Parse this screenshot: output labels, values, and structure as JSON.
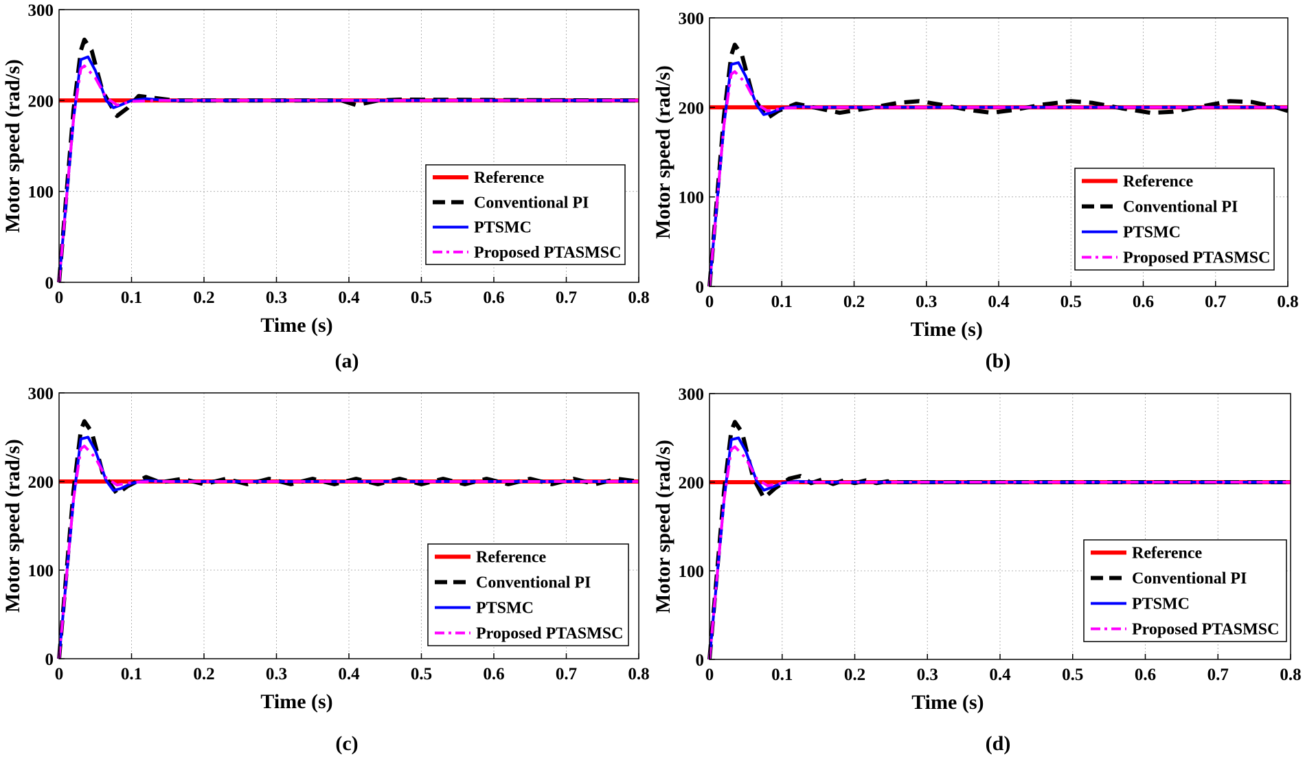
{
  "colors": {
    "reference": "#ff0000",
    "conventional_pi": "#000000",
    "ptsmc": "#0000ff",
    "proposed": "#ff00ff",
    "grid": "#b0b0b0"
  },
  "chart_data": [
    {
      "type": "line",
      "caption": "(a)",
      "xlabel": "Time (s)",
      "ylabel": "Motor speed (rad/s)",
      "xlim": [
        0,
        0.8
      ],
      "ylim": [
        0,
        300
      ],
      "xticks": [
        "0",
        "0.1",
        "0.2",
        "0.3",
        "0.4",
        "0.5",
        "0.6",
        "0.7",
        "0.8"
      ],
      "yticks": [
        "0",
        "100",
        "200",
        "300"
      ],
      "grid": true,
      "legend_position": "bottom-right",
      "series": [
        {
          "name": "Reference",
          "style": "solid",
          "x": [
            0,
            0.8
          ],
          "y": [
            200,
            200
          ]
        },
        {
          "name": "Conventional PI",
          "style": "dashed",
          "x": [
            0,
            0.01,
            0.02,
            0.03,
            0.035,
            0.045,
            0.06,
            0.08,
            0.095,
            0.11,
            0.13,
            0.16,
            0.39,
            0.41,
            0.44,
            0.47,
            0.8
          ],
          "y": [
            0,
            95,
            190,
            255,
            267,
            255,
            210,
            183,
            192,
            205,
            203,
            200,
            200,
            195,
            200,
            201,
            200
          ]
        },
        {
          "name": "PTSMC",
          "style": "solid",
          "x": [
            0,
            0.01,
            0.02,
            0.03,
            0.04,
            0.05,
            0.065,
            0.075,
            0.085,
            0.1,
            0.12,
            0.15,
            0.8
          ],
          "y": [
            0,
            90,
            180,
            245,
            248,
            233,
            200,
            192,
            195,
            200,
            202,
            200,
            200
          ]
        },
        {
          "name": "Proposed PTASMSC",
          "style": "dashdot",
          "x": [
            0,
            0.01,
            0.02,
            0.03,
            0.035,
            0.05,
            0.065,
            0.08,
            0.1,
            0.13,
            0.8
          ],
          "y": [
            0,
            90,
            180,
            235,
            238,
            225,
            203,
            195,
            199,
            200,
            200
          ]
        }
      ]
    },
    {
      "type": "line",
      "caption": "(b)",
      "xlabel": "Time (s)",
      "ylabel": "Motor speed (rad/s)",
      "xlim": [
        0,
        0.8
      ],
      "ylim": [
        0,
        300
      ],
      "xticks": [
        "0",
        "0.1",
        "0.2",
        "0.3",
        "0.4",
        "0.5",
        "0.6",
        "0.7",
        "0.8"
      ],
      "yticks": [
        "0",
        "100",
        "200",
        "300"
      ],
      "grid": true,
      "legend_position": "bottom-right",
      "series": [
        {
          "name": "Reference",
          "style": "solid",
          "x": [
            0,
            0.8
          ],
          "y": [
            200,
            200
          ]
        },
        {
          "name": "Conventional PI",
          "style": "dashed",
          "x": [
            0,
            0.01,
            0.02,
            0.03,
            0.035,
            0.045,
            0.06,
            0.08,
            0.095,
            0.12,
            0.15,
            0.18,
            0.22,
            0.26,
            0.29,
            0.32,
            0.36,
            0.39,
            0.42,
            0.46,
            0.5,
            0.53,
            0.57,
            0.61,
            0.64,
            0.68,
            0.72,
            0.75,
            0.78,
            0.8
          ],
          "y": [
            0,
            95,
            190,
            258,
            270,
            258,
            212,
            188,
            196,
            204,
            199,
            194,
            199,
            205,
            207,
            203,
            197,
            194,
            197,
            203,
            207,
            205,
            199,
            194,
            195,
            201,
            207,
            206,
            201,
            196
          ]
        },
        {
          "name": "PTSMC",
          "style": "solid",
          "x": [
            0,
            0.01,
            0.02,
            0.03,
            0.04,
            0.05,
            0.065,
            0.075,
            0.085,
            0.1,
            0.12,
            0.15,
            0.8
          ],
          "y": [
            0,
            90,
            180,
            248,
            250,
            235,
            203,
            192,
            194,
            199,
            201,
            200,
            200
          ]
        },
        {
          "name": "Proposed PTASMSC",
          "style": "dashdot",
          "x": [
            0,
            0.01,
            0.02,
            0.03,
            0.035,
            0.05,
            0.065,
            0.08,
            0.1,
            0.13,
            0.8
          ],
          "y": [
            0,
            90,
            180,
            237,
            240,
            227,
            204,
            196,
            199,
            200,
            200
          ]
        }
      ]
    },
    {
      "type": "line",
      "caption": "(c)",
      "xlabel": "Time (s)",
      "ylabel": "Motor speed (rad/s)",
      "xlim": [
        0,
        0.8
      ],
      "ylim": [
        0,
        300
      ],
      "xticks": [
        "0",
        "0.1",
        "0.2",
        "0.3",
        "0.4",
        "0.5",
        "0.6",
        "0.7",
        "0.8"
      ],
      "yticks": [
        "0",
        "100",
        "200",
        "300"
      ],
      "grid": true,
      "legend_position": "bottom-right",
      "series": [
        {
          "name": "Reference",
          "style": "solid",
          "x": [
            0,
            0.8
          ],
          "y": [
            200,
            200
          ]
        },
        {
          "name": "Conventional PI",
          "style": "dashed",
          "x": [
            0,
            0.01,
            0.02,
            0.03,
            0.035,
            0.045,
            0.06,
            0.08,
            0.095,
            0.12,
            0.14,
            0.17,
            0.2,
            0.23,
            0.26,
            0.29,
            0.32,
            0.35,
            0.38,
            0.41,
            0.44,
            0.47,
            0.5,
            0.53,
            0.56,
            0.59,
            0.62,
            0.65,
            0.68,
            0.71,
            0.74,
            0.77,
            0.8
          ],
          "y": [
            0,
            95,
            190,
            258,
            268,
            256,
            210,
            186,
            195,
            205,
            199,
            203,
            197,
            203,
            197,
            203,
            197,
            203,
            197,
            203,
            197,
            203,
            197,
            203,
            197,
            203,
            197,
            203,
            197,
            203,
            197,
            203,
            200
          ]
        },
        {
          "name": "PTSMC",
          "style": "solid",
          "x": [
            0,
            0.01,
            0.02,
            0.03,
            0.04,
            0.05,
            0.065,
            0.075,
            0.085,
            0.1,
            0.12,
            0.15,
            0.8
          ],
          "y": [
            0,
            90,
            180,
            248,
            250,
            235,
            201,
            190,
            192,
            198,
            201,
            200,
            200
          ]
        },
        {
          "name": "Proposed PTASMSC",
          "style": "dashdot",
          "x": [
            0,
            0.01,
            0.02,
            0.03,
            0.035,
            0.05,
            0.065,
            0.08,
            0.1,
            0.13,
            0.8
          ],
          "y": [
            0,
            90,
            180,
            237,
            240,
            227,
            204,
            196,
            199,
            200,
            200
          ]
        }
      ]
    },
    {
      "type": "line",
      "caption": "(d)",
      "xlabel": "Time (s)",
      "ylabel": "Motor speed (rad/s)",
      "xlim": [
        0,
        0.8
      ],
      "ylim": [
        0,
        300
      ],
      "xticks": [
        "0",
        "0.1",
        "0.2",
        "0.3",
        "0.4",
        "0.5",
        "0.6",
        "0.7",
        "0.8"
      ],
      "yticks": [
        "0",
        "100",
        "200",
        "300"
      ],
      "grid": true,
      "legend_position": "bottom-right",
      "series": [
        {
          "name": "Reference",
          "style": "solid",
          "x": [
            0,
            0.8
          ],
          "y": [
            200,
            200
          ]
        },
        {
          "name": "Conventional PI",
          "style": "dashed",
          "x": [
            0,
            0.01,
            0.02,
            0.03,
            0.035,
            0.045,
            0.06,
            0.075,
            0.09,
            0.11,
            0.125,
            0.14,
            0.155,
            0.17,
            0.185,
            0.2,
            0.215,
            0.23,
            0.245,
            0.26,
            0.8
          ],
          "y": [
            0,
            95,
            190,
            258,
            268,
            256,
            205,
            182,
            193,
            204,
            207,
            199,
            203,
            198,
            202,
            199,
            202,
            199,
            201,
            200,
            200
          ]
        },
        {
          "name": "PTSMC",
          "style": "solid",
          "x": [
            0,
            0.01,
            0.02,
            0.03,
            0.04,
            0.05,
            0.065,
            0.075,
            0.085,
            0.1,
            0.12,
            0.15,
            0.8
          ],
          "y": [
            0,
            90,
            180,
            248,
            250,
            235,
            201,
            191,
            194,
            199,
            201,
            200,
            200
          ]
        },
        {
          "name": "Proposed PTASMSC",
          "style": "dashdot",
          "x": [
            0,
            0.01,
            0.02,
            0.03,
            0.035,
            0.05,
            0.065,
            0.08,
            0.1,
            0.13,
            0.8
          ],
          "y": [
            0,
            90,
            180,
            237,
            240,
            227,
            204,
            196,
            199,
            200,
            200
          ]
        }
      ]
    }
  ]
}
